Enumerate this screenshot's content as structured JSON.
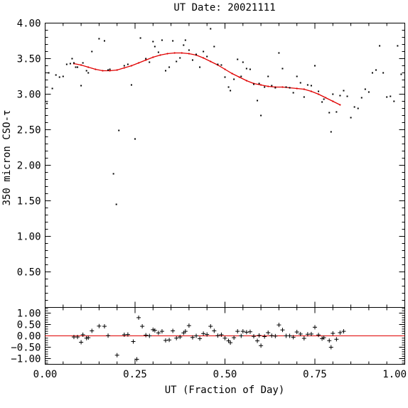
{
  "chart_data": {
    "type": "scatter",
    "title": "UT Date: 20021111",
    "xlabel": "UT (Fraction of Day)",
    "ylabel": "350 micron CSO-τ",
    "colors": {
      "points": "#000000",
      "fit": "#e00000",
      "zero_line": "#e00000"
    },
    "top_panel": {
      "ylim": [
        0.0,
        4.0
      ],
      "yticks": [
        {
          "v": 0.5,
          "label": "0.50"
        },
        {
          "v": 1.0,
          "label": "1.00"
        },
        {
          "v": 1.5,
          "label": "1.50"
        },
        {
          "v": 2.0,
          "label": "2.00"
        },
        {
          "v": 2.5,
          "label": "2.50"
        },
        {
          "v": 3.0,
          "label": "3.00"
        },
        {
          "v": 3.5,
          "label": "3.50"
        },
        {
          "v": 4.0,
          "label": "4.00"
        }
      ],
      "points": [
        [
          0.005,
          2.87
        ],
        [
          0.01,
          3.3
        ],
        [
          0.02,
          3.08
        ],
        [
          0.03,
          3.27
        ],
        [
          0.04,
          3.24
        ],
        [
          0.05,
          3.25
        ],
        [
          0.06,
          3.42
        ],
        [
          0.07,
          3.43
        ],
        [
          0.075,
          3.5
        ],
        [
          0.08,
          3.44
        ],
        [
          0.085,
          3.38
        ],
        [
          0.09,
          3.38
        ],
        [
          0.1,
          3.12
        ],
        [
          0.105,
          3.44
        ],
        [
          0.115,
          3.33
        ],
        [
          0.12,
          3.3
        ],
        [
          0.13,
          3.6
        ],
        [
          0.15,
          3.78
        ],
        [
          0.165,
          3.75
        ],
        [
          0.175,
          3.34
        ],
        [
          0.18,
          3.35
        ],
        [
          0.19,
          1.88
        ],
        [
          0.198,
          1.45
        ],
        [
          0.205,
          2.49
        ],
        [
          0.22,
          3.4
        ],
        [
          0.23,
          3.42
        ],
        [
          0.24,
          3.13
        ],
        [
          0.25,
          2.37
        ],
        [
          0.265,
          3.79
        ],
        [
          0.28,
          3.5
        ],
        [
          0.29,
          3.45
        ],
        [
          0.3,
          3.74
        ],
        [
          0.305,
          3.67
        ],
        [
          0.315,
          3.59
        ],
        [
          0.325,
          3.76
        ],
        [
          0.335,
          3.33
        ],
        [
          0.345,
          3.38
        ],
        [
          0.355,
          3.75
        ],
        [
          0.365,
          3.46
        ],
        [
          0.375,
          3.51
        ],
        [
          0.385,
          3.69
        ],
        [
          0.39,
          3.76
        ],
        [
          0.4,
          3.62
        ],
        [
          0.41,
          3.48
        ],
        [
          0.42,
          3.56
        ],
        [
          0.43,
          3.38
        ],
        [
          0.44,
          3.6
        ],
        [
          0.45,
          3.53
        ],
        [
          0.46,
          3.92
        ],
        [
          0.47,
          3.67
        ],
        [
          0.48,
          3.42
        ],
        [
          0.49,
          3.41
        ],
        [
          0.5,
          3.24
        ],
        [
          0.51,
          3.1
        ],
        [
          0.515,
          3.05
        ],
        [
          0.525,
          3.21
        ],
        [
          0.535,
          3.49
        ],
        [
          0.545,
          3.25
        ],
        [
          0.55,
          3.45
        ],
        [
          0.56,
          3.36
        ],
        [
          0.57,
          3.35
        ],
        [
          0.58,
          3.14
        ],
        [
          0.59,
          2.91
        ],
        [
          0.595,
          3.15
        ],
        [
          0.6,
          2.7
        ],
        [
          0.61,
          3.1
        ],
        [
          0.62,
          3.25
        ],
        [
          0.63,
          3.12
        ],
        [
          0.64,
          3.09
        ],
        [
          0.65,
          3.58
        ],
        [
          0.66,
          3.36
        ],
        [
          0.67,
          3.1
        ],
        [
          0.68,
          3.09
        ],
        [
          0.69,
          3.02
        ],
        [
          0.7,
          3.25
        ],
        [
          0.71,
          3.16
        ],
        [
          0.72,
          2.96
        ],
        [
          0.73,
          3.13
        ],
        [
          0.74,
          3.12
        ],
        [
          0.75,
          3.4
        ],
        [
          0.76,
          3.04
        ],
        [
          0.77,
          2.89
        ],
        [
          0.775,
          2.93
        ],
        [
          0.79,
          2.74
        ],
        [
          0.795,
          2.47
        ],
        [
          0.8,
          3.0
        ],
        [
          0.81,
          2.75
        ],
        [
          0.82,
          2.98
        ],
        [
          0.83,
          3.05
        ],
        [
          0.84,
          2.97
        ],
        [
          0.85,
          2.67
        ],
        [
          0.86,
          2.82
        ],
        [
          0.87,
          2.8
        ],
        [
          0.88,
          2.95
        ],
        [
          0.89,
          3.07
        ],
        [
          0.9,
          3.03
        ],
        [
          0.91,
          3.3
        ],
        [
          0.92,
          3.34
        ],
        [
          0.93,
          3.68
        ],
        [
          0.94,
          3.3
        ],
        [
          0.95,
          2.96
        ],
        [
          0.96,
          2.97
        ],
        [
          0.97,
          2.9
        ],
        [
          0.98,
          3.68
        ],
        [
          0.99,
          3.28
        ]
      ],
      "fit": [
        [
          0.08,
          3.43
        ],
        [
          0.1,
          3.41
        ],
        [
          0.12,
          3.38
        ],
        [
          0.14,
          3.35
        ],
        [
          0.16,
          3.33
        ],
        [
          0.18,
          3.33
        ],
        [
          0.2,
          3.34
        ],
        [
          0.22,
          3.37
        ],
        [
          0.24,
          3.4
        ],
        [
          0.26,
          3.44
        ],
        [
          0.28,
          3.48
        ],
        [
          0.3,
          3.52
        ],
        [
          0.32,
          3.55
        ],
        [
          0.34,
          3.57
        ],
        [
          0.36,
          3.58
        ],
        [
          0.38,
          3.58
        ],
        [
          0.4,
          3.57
        ],
        [
          0.42,
          3.55
        ],
        [
          0.44,
          3.51
        ],
        [
          0.46,
          3.46
        ],
        [
          0.48,
          3.41
        ],
        [
          0.5,
          3.35
        ],
        [
          0.52,
          3.29
        ],
        [
          0.54,
          3.24
        ],
        [
          0.56,
          3.19
        ],
        [
          0.58,
          3.15
        ],
        [
          0.6,
          3.13
        ],
        [
          0.62,
          3.11
        ],
        [
          0.64,
          3.1
        ],
        [
          0.66,
          3.1
        ],
        [
          0.68,
          3.09
        ],
        [
          0.7,
          3.08
        ],
        [
          0.72,
          3.07
        ],
        [
          0.74,
          3.04
        ],
        [
          0.76,
          3.0
        ],
        [
          0.78,
          2.95
        ],
        [
          0.8,
          2.9
        ],
        [
          0.82,
          2.85
        ]
      ]
    },
    "bottom_panel": {
      "ylim": [
        -1.25,
        1.25
      ],
      "yticks": [
        {
          "v": -1.0,
          "label": "−1.00"
        },
        {
          "v": -0.5,
          "label": "−0.50"
        },
        {
          "v": 0.0,
          "label": "0.00"
        },
        {
          "v": 0.5,
          "label": "0.50"
        },
        {
          "v": 1.0,
          "label": "1.00"
        }
      ],
      "residuals": [
        [
          0.08,
          -0.05
        ],
        [
          0.09,
          -0.05
        ],
        [
          0.1,
          -0.28
        ],
        [
          0.105,
          0.05
        ],
        [
          0.115,
          -0.1
        ],
        [
          0.12,
          -0.08
        ],
        [
          0.13,
          0.22
        ],
        [
          0.15,
          0.43
        ],
        [
          0.165,
          0.42
        ],
        [
          0.175,
          0.01
        ],
        [
          0.2,
          -0.85
        ],
        [
          0.22,
          0.05
        ],
        [
          0.23,
          0.06
        ],
        [
          0.245,
          -0.25
        ],
        [
          0.255,
          -1.03
        ],
        [
          0.26,
          0.8
        ],
        [
          0.27,
          0.42
        ],
        [
          0.28,
          0.03
        ],
        [
          0.29,
          0.0
        ],
        [
          0.3,
          0.27
        ],
        [
          0.305,
          0.24
        ],
        [
          0.315,
          0.13
        ],
        [
          0.325,
          0.2
        ],
        [
          0.335,
          -0.2
        ],
        [
          0.345,
          -0.18
        ],
        [
          0.355,
          0.22
        ],
        [
          0.365,
          -0.1
        ],
        [
          0.375,
          -0.05
        ],
        [
          0.385,
          0.13
        ],
        [
          0.39,
          0.2
        ],
        [
          0.4,
          0.45
        ],
        [
          0.41,
          -0.07
        ],
        [
          0.42,
          0.0
        ],
        [
          0.43,
          -0.12
        ],
        [
          0.44,
          0.1
        ],
        [
          0.45,
          0.06
        ],
        [
          0.46,
          0.42
        ],
        [
          0.47,
          0.22
        ],
        [
          0.48,
          0.01
        ],
        [
          0.49,
          0.05
        ],
        [
          0.5,
          -0.1
        ],
        [
          0.51,
          -0.22
        ],
        [
          0.515,
          -0.3
        ],
        [
          0.525,
          -0.08
        ],
        [
          0.535,
          0.2
        ],
        [
          0.545,
          0.0
        ],
        [
          0.55,
          0.2
        ],
        [
          0.56,
          0.16
        ],
        [
          0.57,
          0.18
        ],
        [
          0.58,
          -0.02
        ],
        [
          0.59,
          -0.22
        ],
        [
          0.595,
          0.02
        ],
        [
          0.6,
          -0.43
        ],
        [
          0.61,
          -0.03
        ],
        [
          0.62,
          0.14
        ],
        [
          0.63,
          0.01
        ],
        [
          0.64,
          -0.01
        ],
        [
          0.65,
          0.48
        ],
        [
          0.66,
          0.26
        ],
        [
          0.67,
          0.0
        ],
        [
          0.68,
          0.0
        ],
        [
          0.69,
          -0.06
        ],
        [
          0.7,
          0.17
        ],
        [
          0.71,
          0.08
        ],
        [
          0.72,
          -0.11
        ],
        [
          0.73,
          0.07
        ],
        [
          0.74,
          0.08
        ],
        [
          0.75,
          0.38
        ],
        [
          0.76,
          0.04
        ],
        [
          0.77,
          -0.12
        ],
        [
          0.775,
          -0.08
        ],
        [
          0.79,
          -0.21
        ],
        [
          0.795,
          -0.5
        ],
        [
          0.8,
          0.11
        ],
        [
          0.81,
          -0.15
        ],
        [
          0.82,
          0.14
        ],
        [
          0.83,
          0.2
        ]
      ]
    },
    "xlim": [
      0.0,
      1.0
    ],
    "xticks": [
      {
        "v": 0.0,
        "label": "0.00"
      },
      {
        "v": 0.25,
        "label": "0.25"
      },
      {
        "v": 0.5,
        "label": "0.50"
      },
      {
        "v": 0.75,
        "label": "0.75"
      },
      {
        "v": 1.0,
        "label": "1.00"
      }
    ]
  }
}
